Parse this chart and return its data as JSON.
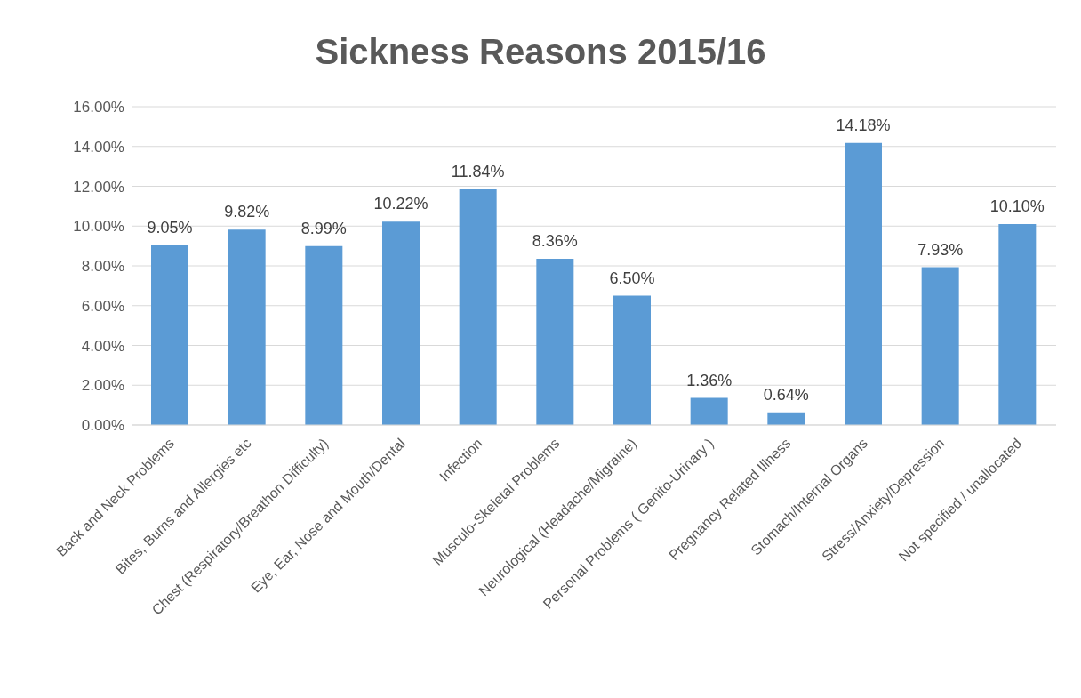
{
  "chart_data": {
    "type": "bar",
    "title": "Sickness Reasons 2015/16",
    "categories": [
      "Back and Neck Problems",
      "Bites, Burns and Allergies etc",
      "Chest (Respiratory/Breathon Difficulty)",
      "Eye, Ear, Nose and Mouth/Dental",
      "Infection",
      "Musculo-Skeletal Problems",
      "Neurological (Headache/Migraine)",
      "Personal Problems ( Genito-Urinary )",
      "Pregnancy Related Illness",
      "Stomach/Internal Organs",
      "Stress/Anxiety/Depression",
      "Not specified / unallocated"
    ],
    "values": [
      9.05,
      9.82,
      8.99,
      10.22,
      11.84,
      8.36,
      6.5,
      1.36,
      0.64,
      14.18,
      7.93,
      10.1
    ],
    "value_labels": [
      "9.05%",
      "9.82%",
      "8.99%",
      "10.22%",
      "11.84%",
      "8.36%",
      "6.50%",
      "1.36%",
      "0.64%",
      "14.18%",
      "7.93%",
      "10.10%"
    ],
    "color": "#5b9bd5",
    "ylim": [
      0,
      16
    ],
    "yticks": [
      {
        "value": 0,
        "label": "0.00%"
      },
      {
        "value": 2,
        "label": "2.00%"
      },
      {
        "value": 4,
        "label": "4.00%"
      },
      {
        "value": 6,
        "label": "6.00%"
      },
      {
        "value": 8,
        "label": "8.00%"
      },
      {
        "value": 10,
        "label": "10.00%"
      },
      {
        "value": 12,
        "label": "12.00%"
      },
      {
        "value": 14,
        "label": "14.00%"
      },
      {
        "value": 16,
        "label": "16.00%"
      }
    ],
    "grid": "y"
  }
}
